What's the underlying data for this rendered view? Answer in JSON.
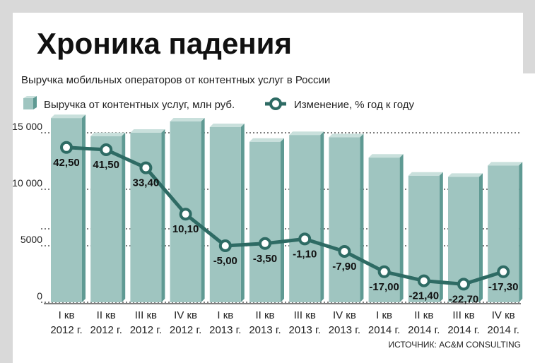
{
  "chart_data": {
    "type": "bar",
    "title": "Хроника падения",
    "subtitle": "Выручка мобильных операторов от контентных услуг в России",
    "source": "ИСТОЧНИК: AC&M CONSULTING",
    "categories": [
      [
        "I кв",
        "2012 г."
      ],
      [
        "II кв",
        "2012 г."
      ],
      [
        "III кв",
        "2012 г."
      ],
      [
        "IV кв",
        "2012 г."
      ],
      [
        "I кв",
        "2013 г."
      ],
      [
        "II кв",
        "2013 г."
      ],
      [
        "III кв",
        "2013 г."
      ],
      [
        "IV кв",
        "2013 г."
      ],
      [
        "I кв",
        "2014 г."
      ],
      [
        "II кв",
        "2014 г."
      ],
      [
        "III кв",
        "2014 г."
      ],
      [
        "IV кв",
        "2014 г."
      ]
    ],
    "yticks": [
      "0",
      "5000",
      "10 000",
      "15 000"
    ],
    "ytick_values": [
      0,
      5000,
      10000,
      15000
    ],
    "ylim": [
      0,
      17000
    ],
    "series": [
      {
        "name": "Выручка от контентных услуг, млн руб.",
        "kind": "bar",
        "color": "#9fc5c0",
        "values": [
          16300,
          14700,
          15000,
          16000,
          15500,
          14200,
          14800,
          14600,
          12800,
          11200,
          11100,
          12100
        ]
      },
      {
        "name": "Изменение, % год к году",
        "kind": "line",
        "color": "#2e6b64",
        "values": [
          42.5,
          41.5,
          33.4,
          10.1,
          -5.0,
          -3.5,
          -1.1,
          -7.9,
          -17.0,
          -21.4,
          -22.7,
          -17.3
        ],
        "labels": [
          "42,50",
          "41,50",
          "33,40",
          "10,10",
          "-5,00",
          "-3,50",
          "-1,10",
          "-7,90",
          "-17,00",
          "-21,40",
          "-22,70",
          "-17,30"
        ],
        "plot_y": [
          13700,
          13500,
          11900,
          7800,
          5000,
          5200,
          5600,
          4500,
          2700,
          1900,
          1600,
          2700
        ]
      }
    ],
    "colors": {
      "bar": "#9fc5c0",
      "bar_side": "#5f9a93",
      "bar_top": "#c9e0dc",
      "line": "#2e6b64",
      "grid": "#555555",
      "frame": "#dcdcdc"
    }
  }
}
